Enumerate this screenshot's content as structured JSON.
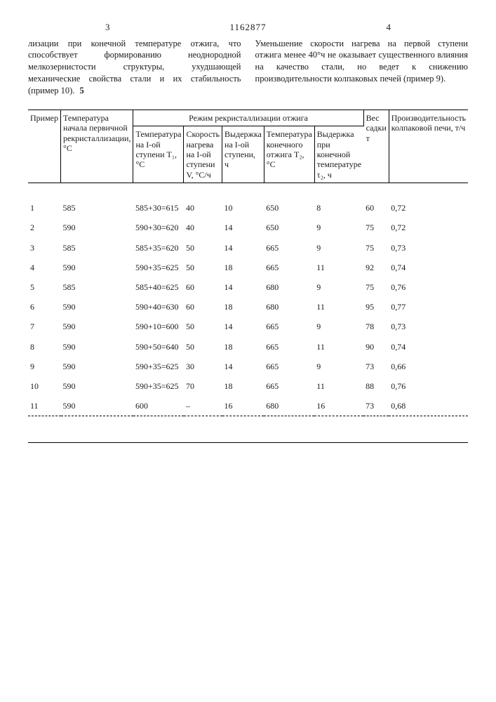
{
  "header": {
    "left_page": "3",
    "doc_id": "1162877",
    "right_page": "4"
  },
  "left_text": "лизации при конечной температуре отжига, что способствует формированию неоднородной мелкозернистости структуры, ухудшающей механические свойства стали и их стабильность (пример 10).",
  "right_text": "Уменьшение скорости нагрева на первой ступени отжига менее 40°ч не оказывает существенного влияния на качество стали, но ведет к снижению производительности колпаковых печей (пример 9).",
  "marker": "5",
  "table": {
    "group_header": "Режим рекристаллизации отжига",
    "headers": {
      "c1": "Пример",
      "c2": "Температура начала первичной рекристаллизации, °C",
      "c3": "Температура на I-ой ступени T₁, °C",
      "c4": "Скорость нагрева на I-ой ступени V, °C/ч",
      "c5": "Выдержка на I-ой ступени, ч",
      "c6": "Температура конечного отжига T₂, °C",
      "c7": "Выдержка при конечной температуре τ₂, ч",
      "c8": "Вес садки т",
      "c9": "Производительность колпаковой печи, т/ч"
    },
    "rows": [
      [
        "1",
        "585",
        "585+30=615",
        "40",
        "10",
        "650",
        "8",
        "60",
        "0,72"
      ],
      [
        "2",
        "590",
        "590+30=620",
        "40",
        "14",
        "650",
        "9",
        "75",
        "0,72"
      ],
      [
        "3",
        "585",
        "585+35=620",
        "50",
        "14",
        "665",
        "9",
        "75",
        "0,73"
      ],
      [
        "4",
        "590",
        "590+35=625",
        "50",
        "18",
        "665",
        "11",
        "92",
        "0,74"
      ],
      [
        "5",
        "585",
        "585+40=625",
        "60",
        "14",
        "680",
        "9",
        "75",
        "0,76"
      ],
      [
        "6",
        "590",
        "590+40=630",
        "60",
        "18",
        "680",
        "11",
        "95",
        "0,77"
      ],
      [
        "7",
        "590",
        "590+10=600",
        "50",
        "14",
        "665",
        "9",
        "78",
        "0,73"
      ],
      [
        "8",
        "590",
        "590+50=640",
        "50",
        "18",
        "665",
        "11",
        "90",
        "0,74"
      ],
      [
        "9",
        "590",
        "590+35=625",
        "30",
        "14",
        "665",
        "9",
        "73",
        "0,66"
      ],
      [
        "10",
        "590",
        "590+35=625",
        "70",
        "18",
        "665",
        "11",
        "88",
        "0,76"
      ],
      [
        "11",
        "590",
        "600",
        "–",
        "16",
        "680",
        "16",
        "73",
        "0,68"
      ]
    ]
  }
}
